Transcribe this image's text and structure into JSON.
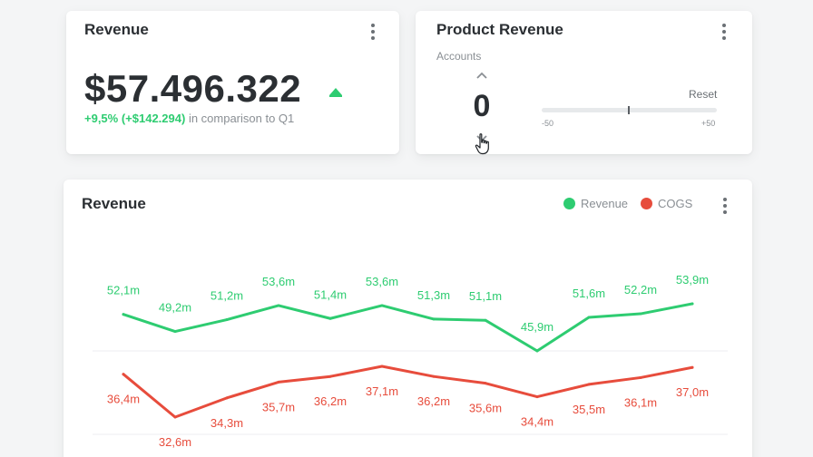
{
  "revenue_card": {
    "title": "Revenue",
    "value": "$57.496.322",
    "change": "+9,5% (+$142.294)",
    "comparison": "in comparison to Q1"
  },
  "product_card": {
    "title": "Product Revenue",
    "accounts_label": "Accounts",
    "stepper_value": "0",
    "reset_label": "Reset",
    "slider_min": "-50",
    "slider_max": "+50",
    "slider_value": 0
  },
  "chart_card": {
    "title": "Revenue",
    "legend": [
      {
        "name": "Revenue",
        "color": "#2ecc71"
      },
      {
        "name": "COGS",
        "color": "#e74c3c"
      }
    ]
  },
  "colors": {
    "positive": "#2ecc71",
    "revenue": "#2ecc71",
    "cogs": "#e74c3c"
  },
  "chart_data": {
    "type": "line",
    "series": [
      {
        "name": "Revenue",
        "color": "#2ecc71",
        "values": [
          52.1,
          49.2,
          51.2,
          53.6,
          51.4,
          53.6,
          51.3,
          51.1,
          45.9,
          51.6,
          52.2,
          53.9
        ],
        "labels": [
          "52,1m",
          "49,2m",
          "51,2m",
          "53,6m",
          "51,4m",
          "53,6m",
          "51,3m",
          "51,1m",
          "45,9m",
          "51,6m",
          "52,2m",
          "53,9m"
        ]
      },
      {
        "name": "COGS",
        "color": "#e74c3c",
        "values": [
          36.4,
          32.6,
          34.3,
          35.7,
          36.2,
          37.1,
          36.2,
          35.6,
          34.4,
          35.5,
          36.1,
          37.0
        ],
        "labels": [
          "36,4m",
          "32,6m",
          "34,3m",
          "35,7m",
          "36,2m",
          "37,1m",
          "36,2m",
          "35,6m",
          "34,4m",
          "35,5m",
          "36,1m",
          "37,0m"
        ]
      }
    ],
    "grid": true,
    "legend_position": "top-right"
  }
}
